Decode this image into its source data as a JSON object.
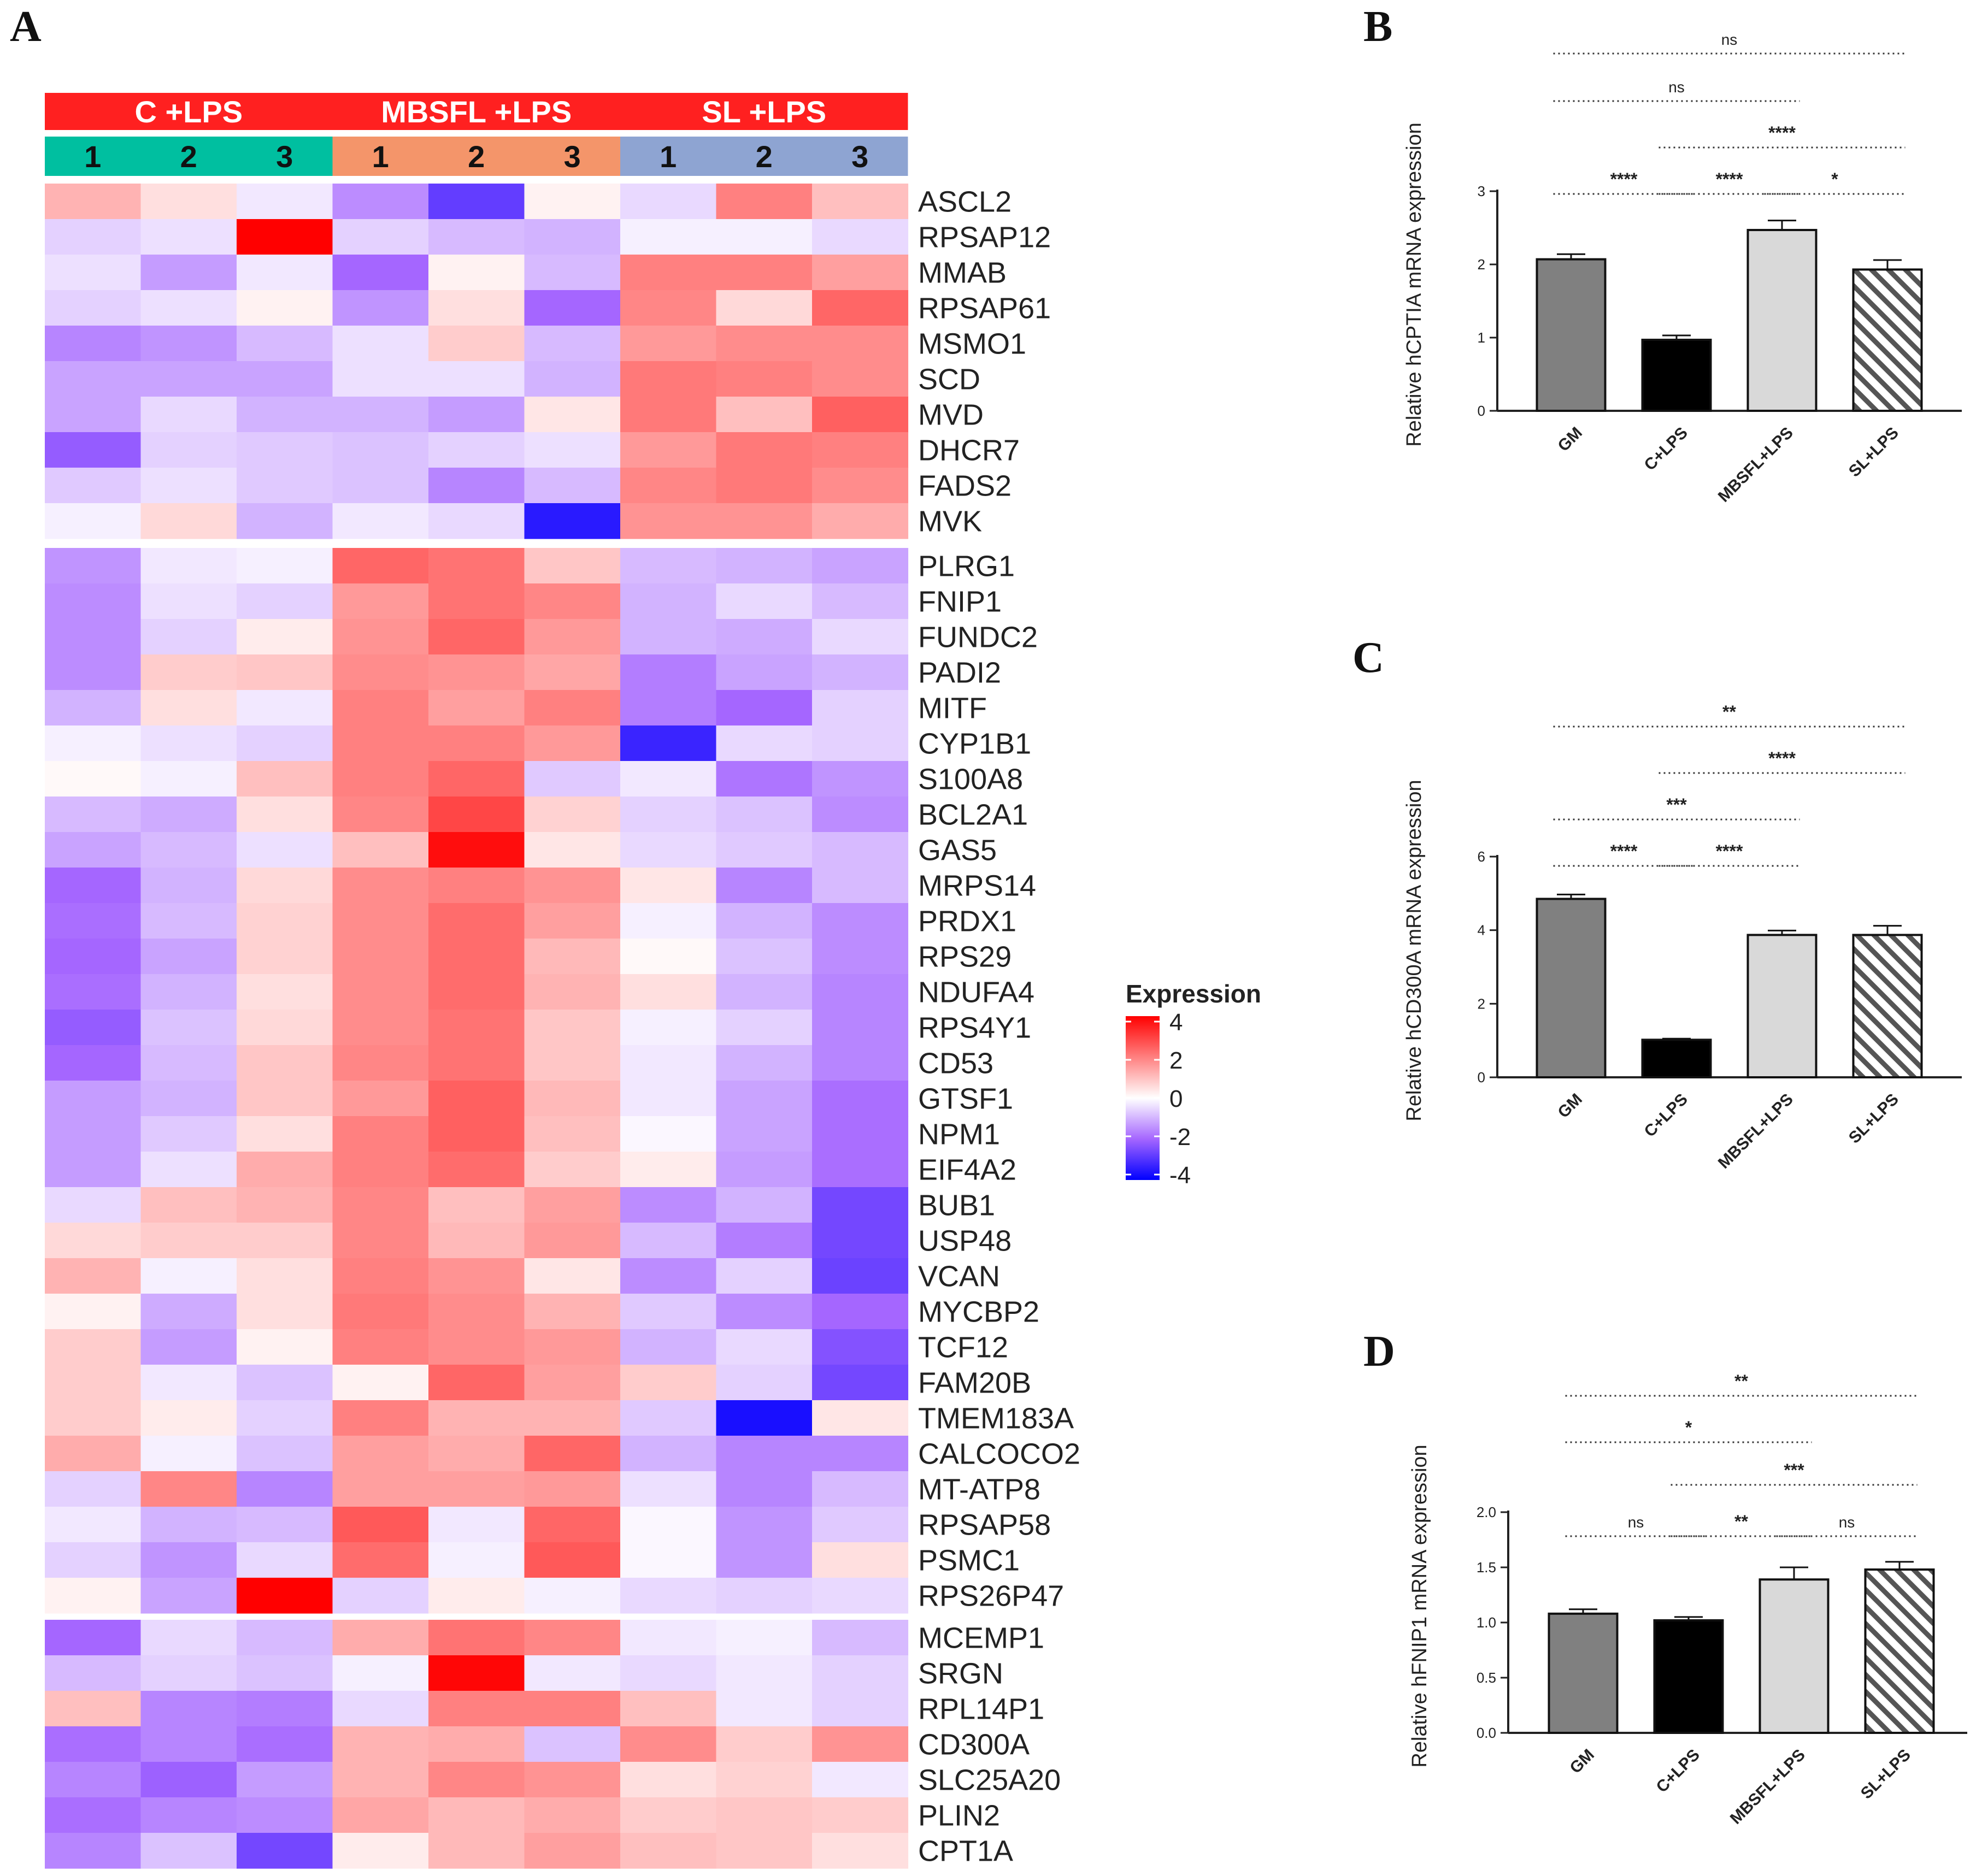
{
  "panels": {
    "A": "A",
    "B": "B",
    "C": "C",
    "D": "D"
  },
  "heatmap": {
    "groups": [
      "C +LPS",
      "MBSFL +LPS",
      "SL +LPS"
    ],
    "group_colors": [
      "#ff2020",
      "#ff2020",
      "#ff2020"
    ],
    "replicates": [
      "1",
      "2",
      "3",
      "1",
      "2",
      "3",
      "1",
      "2",
      "3"
    ],
    "replicate_colors": [
      "#00bfa0",
      "#00bfa0",
      "#00bfa0",
      "#f4956a",
      "#f4956a",
      "#f4956a",
      "#8ea4d2",
      "#8ea4d2",
      "#8ea4d2"
    ],
    "legend_title": "Expression",
    "legend_ticks": [
      "4",
      "2",
      "0",
      "-2",
      "-4"
    ],
    "colors": {
      "high": "#ff0000",
      "mid": "#ffffff",
      "low_mid": "#a566ff",
      "low": "#0000ff"
    },
    "clusters": [
      {
        "rows": [
          {
            "gene": "ASCL2",
            "values": [
              1.2,
              0.5,
              -0.3,
              -1.5,
              -2.8,
              0.2,
              -0.5,
              2.0,
              1.0
            ]
          },
          {
            "gene": "RPSAP12",
            "values": [
              -0.6,
              -0.4,
              4.0,
              -0.6,
              -0.9,
              -1.0,
              -0.2,
              -0.2,
              -0.5
            ]
          },
          {
            "gene": "MMAB",
            "values": [
              -0.4,
              -1.3,
              -0.3,
              -2.0,
              0.2,
              -0.9,
              2.0,
              2.0,
              1.5
            ]
          },
          {
            "gene": "RPSAP61",
            "values": [
              -0.6,
              -0.4,
              0.2,
              -1.4,
              0.5,
              -2.0,
              1.9,
              0.6,
              2.4
            ]
          },
          {
            "gene": "MSMO1",
            "values": [
              -1.6,
              -1.4,
              -0.9,
              -0.4,
              0.8,
              -0.9,
              1.6,
              1.8,
              1.8
            ]
          },
          {
            "gene": "SCD",
            "values": [
              -1.2,
              -1.2,
              -1.2,
              -0.4,
              -0.4,
              -1.0,
              2.1,
              2.0,
              1.8
            ]
          },
          {
            "gene": "MVD",
            "values": [
              -1.2,
              -0.5,
              -1.0,
              -1.0,
              -1.3,
              0.4,
              2.1,
              1.0,
              2.5
            ]
          },
          {
            "gene": "DHCR7",
            "values": [
              -2.2,
              -0.6,
              -0.7,
              -0.8,
              -0.6,
              -0.4,
              1.6,
              2.1,
              2.0
            ]
          },
          {
            "gene": "FADS2",
            "values": [
              -0.7,
              -0.4,
              -0.7,
              -0.8,
              -1.6,
              -0.9,
              1.9,
              2.1,
              1.8
            ]
          },
          {
            "gene": "MVK",
            "values": [
              -0.2,
              0.6,
              -1.0,
              -0.3,
              -0.5,
              -3.5,
              1.7,
              1.7,
              1.3
            ]
          }
        ]
      },
      {
        "rows": [
          {
            "gene": "PLRG1",
            "values": [
              -1.4,
              -0.3,
              -0.2,
              2.4,
              2.2,
              0.9,
              -0.9,
              -1.0,
              -1.2
            ]
          },
          {
            "gene": "FNIP1",
            "values": [
              -1.5,
              -0.4,
              -0.6,
              1.6,
              2.2,
              1.9,
              -1.0,
              -0.5,
              -0.9
            ]
          },
          {
            "gene": "FUNDC2",
            "values": [
              -1.5,
              -0.6,
              0.3,
              1.7,
              2.4,
              1.6,
              -1.0,
              -1.1,
              -0.5
            ]
          },
          {
            "gene": "PADI2",
            "values": [
              -1.5,
              0.8,
              0.9,
              1.8,
              1.7,
              1.4,
              -1.7,
              -1.2,
              -1.0
            ]
          },
          {
            "gene": "MITF",
            "values": [
              -1.0,
              0.5,
              -0.3,
              2.0,
              1.5,
              2.0,
              -1.7,
              -2.0,
              -0.6
            ]
          },
          {
            "gene": "CYP1B1",
            "values": [
              -0.2,
              -0.4,
              -0.6,
              2.0,
              2.0,
              1.6,
              -3.3,
              -0.5,
              -0.6
            ]
          },
          {
            "gene": "S100A8",
            "values": [
              0.1,
              -0.2,
              1.0,
              2.0,
              2.4,
              -0.7,
              -0.3,
              -1.8,
              -1.4
            ]
          },
          {
            "gene": "BCL2A1",
            "values": [
              -0.9,
              -1.1,
              0.5,
              1.9,
              2.9,
              0.7,
              -0.6,
              -0.8,
              -1.5
            ]
          },
          {
            "gene": "GAS5",
            "values": [
              -1.2,
              -0.9,
              -0.4,
              1.0,
              3.8,
              0.4,
              -0.5,
              -0.7,
              -0.9
            ]
          },
          {
            "gene": "MRPS14",
            "values": [
              -2.0,
              -1.0,
              0.6,
              1.8,
              2.0,
              1.7,
              0.4,
              -1.6,
              -0.9
            ]
          },
          {
            "gene": "PRDX1",
            "values": [
              -1.9,
              -0.9,
              0.7,
              1.8,
              2.3,
              1.5,
              -0.2,
              -1.0,
              -1.5
            ]
          },
          {
            "gene": "RPS29",
            "values": [
              -2.0,
              -1.2,
              0.7,
              1.8,
              2.3,
              1.1,
              0.1,
              -0.8,
              -1.5
            ]
          },
          {
            "gene": "NDUFA4",
            "values": [
              -1.9,
              -1.0,
              0.5,
              1.8,
              2.3,
              1.2,
              0.5,
              -1.0,
              -1.6
            ]
          },
          {
            "gene": "RPS4Y1",
            "values": [
              -2.2,
              -0.8,
              0.6,
              1.8,
              2.2,
              0.9,
              -0.2,
              -0.6,
              -1.6
            ]
          },
          {
            "gene": "CD53",
            "values": [
              -2.0,
              -0.9,
              0.9,
              1.9,
              2.2,
              0.9,
              -0.3,
              -1.0,
              -1.6
            ]
          },
          {
            "gene": "GTSF1",
            "values": [
              -1.3,
              -1.0,
              0.9,
              1.6,
              2.5,
              1.1,
              -0.3,
              -1.2,
              -1.9
            ]
          },
          {
            "gene": "NPM1",
            "values": [
              -1.3,
              -0.7,
              0.5,
              2.0,
              2.5,
              1.0,
              -0.1,
              -1.2,
              -1.9
            ]
          },
          {
            "gene": "EIF4A2",
            "values": [
              -1.3,
              -0.4,
              1.3,
              2.0,
              2.3,
              0.8,
              0.3,
              -1.3,
              -1.9
            ]
          },
          {
            "gene": "BUB1",
            "values": [
              -0.5,
              1.0,
              1.2,
              1.9,
              1.0,
              1.5,
              -1.5,
              -1.0,
              -2.6
            ]
          },
          {
            "gene": "USP48",
            "values": [
              0.6,
              0.8,
              0.8,
              1.9,
              1.1,
              1.6,
              -0.9,
              -1.7,
              -2.6
            ]
          },
          {
            "gene": "VCAN",
            "values": [
              1.2,
              -0.2,
              0.5,
              2.0,
              1.7,
              0.4,
              -1.5,
              -0.6,
              -2.7
            ]
          },
          {
            "gene": "MYCBP2",
            "values": [
              0.2,
              -1.1,
              0.5,
              2.1,
              1.8,
              1.2,
              -0.7,
              -1.5,
              -2.0
            ]
          },
          {
            "gene": "TCF12",
            "values": [
              0.8,
              -1.3,
              0.2,
              2.0,
              1.8,
              1.6,
              -1.0,
              -0.5,
              -2.4
            ]
          },
          {
            "gene": "FAM20B",
            "values": [
              0.8,
              -0.3,
              -0.8,
              0.2,
              2.4,
              1.5,
              0.8,
              -0.6,
              -2.6
            ]
          },
          {
            "gene": "TMEM183A",
            "values": [
              0.8,
              0.3,
              -0.6,
              2.0,
              1.2,
              1.2,
              -0.7,
              -3.7,
              0.4
            ]
          },
          {
            "gene": "CALCOCO2",
            "values": [
              1.3,
              -0.2,
              -0.8,
              1.5,
              1.3,
              2.4,
              -1.0,
              -1.6,
              -1.6
            ]
          },
          {
            "gene": "MT-ATP8",
            "values": [
              -0.6,
              1.9,
              -1.6,
              1.5,
              1.5,
              1.6,
              -0.4,
              -1.6,
              -0.9
            ]
          },
          {
            "gene": "RPSAP58",
            "values": [
              -0.3,
              -1.0,
              -0.9,
              2.6,
              -0.3,
              2.4,
              -0.1,
              -1.4,
              -0.7
            ]
          },
          {
            "gene": "PSMC1",
            "values": [
              -0.6,
              -1.4,
              -0.5,
              2.3,
              -0.2,
              2.6,
              -0.1,
              -1.4,
              0.5
            ]
          },
          {
            "gene": "RPS26P47",
            "values": [
              0.2,
              -1.2,
              4.0,
              -0.6,
              0.3,
              -0.2,
              -0.5,
              -0.6,
              -0.5
            ]
          }
        ]
      },
      {
        "rows": [
          {
            "gene": "MCEMP1",
            "values": [
              -2.0,
              -0.5,
              -0.9,
              1.3,
              2.2,
              1.9,
              -0.3,
              -0.2,
              -0.9
            ]
          },
          {
            "gene": "SRGN",
            "values": [
              -0.9,
              -0.6,
              -0.8,
              -0.2,
              3.9,
              -0.3,
              -0.5,
              -0.3,
              -0.6
            ]
          },
          {
            "gene": "RPL14P1",
            "values": [
              1.0,
              -1.6,
              -1.7,
              -0.5,
              2.0,
              2.0,
              1.0,
              -0.3,
              -0.6
            ]
          },
          {
            "gene": "CD300A",
            "values": [
              -1.9,
              -1.6,
              -1.9,
              1.2,
              1.3,
              -0.8,
              1.8,
              0.8,
              1.7
            ]
          },
          {
            "gene": "SLC25A20",
            "values": [
              -1.6,
              -2.1,
              -1.3,
              1.2,
              1.9,
              1.7,
              0.5,
              0.7,
              -0.3
            ]
          },
          {
            "gene": "PLIN2",
            "values": [
              -1.9,
              -1.6,
              -1.5,
              1.4,
              1.1,
              1.3,
              0.8,
              0.9,
              0.8
            ]
          },
          {
            "gene": "CPT1A",
            "values": [
              -1.6,
              -0.8,
              -2.6,
              0.3,
              1.1,
              1.5,
              1.0,
              0.9,
              0.5
            ]
          }
        ]
      }
    ]
  },
  "chart_data": [
    {
      "type": "bar",
      "panel": "B",
      "ylabel": "Relative hCPTIA mRNA expression",
      "categories": [
        "GM",
        "C+LPS",
        "MBSFL+LPS",
        "SL+LPS"
      ],
      "values": [
        2.07,
        0.97,
        2.47,
        1.93
      ],
      "errors": [
        0.07,
        0.06,
        0.13,
        0.13
      ],
      "bar_colors": [
        "#808080",
        "#000000",
        "#d9d9d9",
        "hatch"
      ],
      "ylim": [
        0,
        3
      ],
      "yticks": [
        "0",
        "1",
        "2",
        "3"
      ],
      "significance": [
        {
          "from": 0,
          "to": 3,
          "label": "ns"
        },
        {
          "from": 0,
          "to": 2,
          "label": "ns"
        },
        {
          "from": 1,
          "to": 3,
          "label": "****"
        },
        {
          "from": 0,
          "to": 1,
          "label": "****"
        },
        {
          "from": 1,
          "to": 2,
          "label": "****"
        },
        {
          "from": 2,
          "to": 3,
          "label": "*"
        }
      ]
    },
    {
      "type": "bar",
      "panel": "C",
      "ylabel": "Relative hCD300A mRNA expression",
      "categories": [
        "GM",
        "C+LPS",
        "MBSFL+LPS",
        "SL+LPS"
      ],
      "values": [
        4.85,
        1.02,
        3.87,
        3.87
      ],
      "errors": [
        0.12,
        0.03,
        0.12,
        0.25
      ],
      "bar_colors": [
        "#808080",
        "#000000",
        "#d9d9d9",
        "hatch"
      ],
      "ylim": [
        0,
        6
      ],
      "yticks": [
        "0",
        "2",
        "4",
        "6"
      ],
      "significance": [
        {
          "from": 0,
          "to": 3,
          "label": "**"
        },
        {
          "from": 1,
          "to": 3,
          "label": "****"
        },
        {
          "from": 0,
          "to": 2,
          "label": "***"
        },
        {
          "from": 0,
          "to": 1,
          "label": "****"
        },
        {
          "from": 1,
          "to": 2,
          "label": "****"
        }
      ]
    },
    {
      "type": "bar",
      "panel": "D",
      "ylabel": "Relative hFNIP1 mRNA expression",
      "categories": [
        "GM",
        "C+LPS",
        "MBSFL+LPS",
        "SL+LPS"
      ],
      "values": [
        1.08,
        1.02,
        1.39,
        1.48
      ],
      "errors": [
        0.04,
        0.03,
        0.11,
        0.07
      ],
      "bar_colors": [
        "#808080",
        "#000000",
        "#d9d9d9",
        "hatch"
      ],
      "ylim": [
        0,
        2
      ],
      "yticks": [
        "0.0",
        "0.5",
        "1.0",
        "1.5",
        "2.0"
      ],
      "significance": [
        {
          "from": 0,
          "to": 3,
          "label": "**"
        },
        {
          "from": 0,
          "to": 2,
          "label": "*"
        },
        {
          "from": 1,
          "to": 3,
          "label": "***"
        },
        {
          "from": 0,
          "to": 1,
          "label": "ns"
        },
        {
          "from": 1,
          "to": 2,
          "label": "**"
        },
        {
          "from": 2,
          "to": 3,
          "label": "ns"
        }
      ]
    }
  ]
}
